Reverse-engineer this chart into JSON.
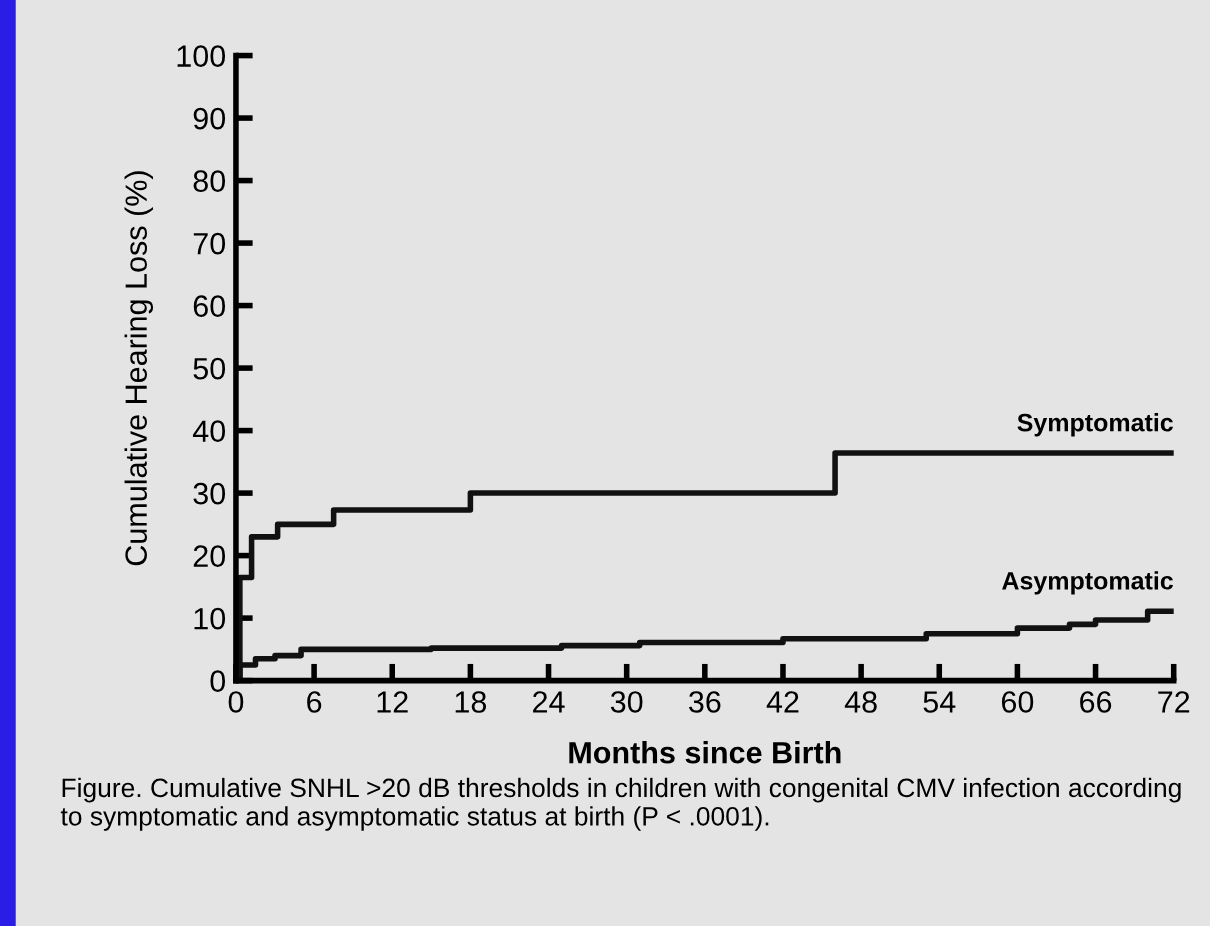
{
  "chart_data": {
    "type": "step",
    "xlabel": "Months since Birth",
    "ylabel": "Cumulative Hearing Loss (%)",
    "series": [
      {
        "name": "Symptomatic",
        "color": "#111111",
        "x": [
          0,
          0.3,
          1.2,
          3.2,
          7.5,
          18,
          46,
          72
        ],
        "values": [
          0,
          16.5,
          23,
          25,
          27.3,
          30,
          36.4,
          36.4
        ]
      },
      {
        "name": "Asymptomatic",
        "color": "#111111",
        "x": [
          0,
          0.3,
          1.5,
          3,
          5,
          15,
          25,
          31,
          42,
          53,
          60,
          64,
          66,
          70,
          72
        ],
        "values": [
          0,
          2.5,
          3.5,
          4,
          5,
          5.2,
          5.6,
          6.1,
          6.7,
          7.5,
          8.4,
          9,
          9.7,
          11.1,
          11.1
        ]
      }
    ],
    "xlim": [
      0,
      72
    ],
    "xticks": [
      0,
      6,
      12,
      18,
      24,
      30,
      36,
      42,
      48,
      54,
      60,
      66,
      72
    ],
    "ylim": [
      0,
      100
    ],
    "yticks": [
      0,
      10,
      20,
      30,
      40,
      50,
      60,
      70,
      80,
      90,
      100
    ],
    "grid": false,
    "legend": false,
    "marker": "none",
    "line_style": "solid",
    "annotations": [
      "Figure. Cumulative SNHL >20 dB thresholds in children with congenital CMV infection according to symptomatic and asymptomatic status at birth (P < .0001)."
    ]
  }
}
